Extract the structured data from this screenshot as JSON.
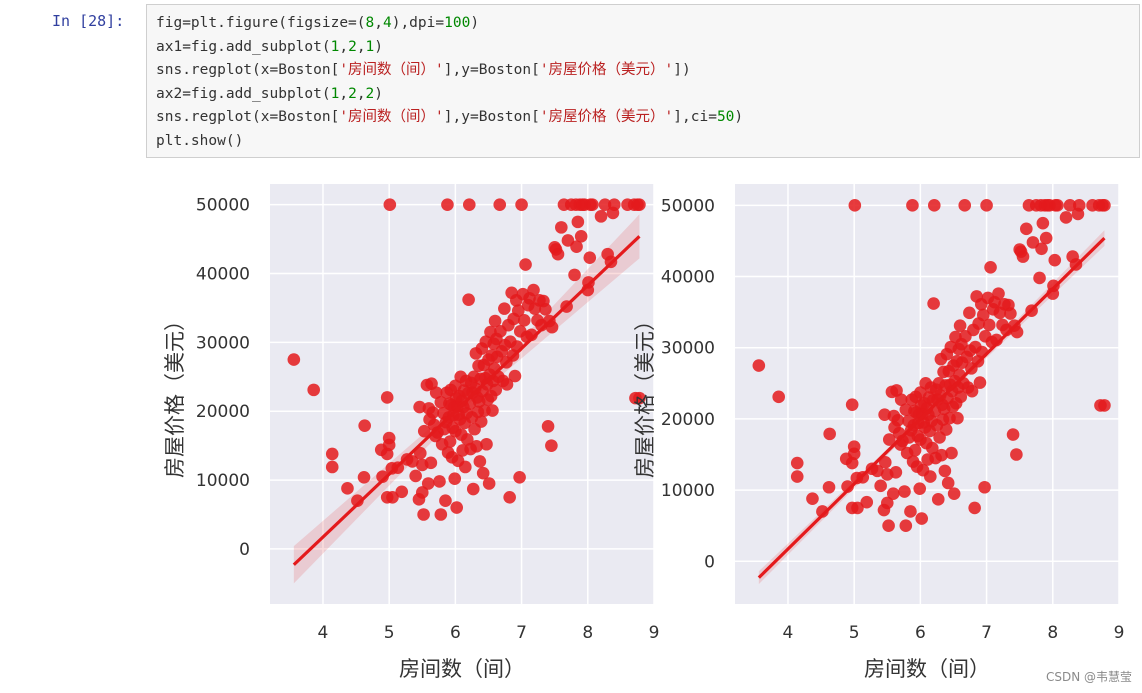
{
  "cell": {
    "prompt": "In  [28]:",
    "code_lines": [
      [
        {
          "t": "fig=plt.figure(figsize=(",
          "c": "kw"
        },
        {
          "t": "8",
          "c": "num"
        },
        {
          "t": ",",
          "c": "kw"
        },
        {
          "t": "4",
          "c": "num"
        },
        {
          "t": "),dpi=",
          "c": "kw"
        },
        {
          "t": "100",
          "c": "num"
        },
        {
          "t": ")",
          "c": "kw"
        }
      ],
      [
        {
          "t": "ax1=fig.add_subplot(",
          "c": "kw"
        },
        {
          "t": "1",
          "c": "num"
        },
        {
          "t": ",",
          "c": "kw"
        },
        {
          "t": "2",
          "c": "num"
        },
        {
          "t": ",",
          "c": "kw"
        },
        {
          "t": "1",
          "c": "num"
        },
        {
          "t": ")",
          "c": "kw"
        }
      ],
      [
        {
          "t": "sns.regplot(x=Boston[",
          "c": "kw"
        },
        {
          "t": "'房间数（间）'",
          "c": "str"
        },
        {
          "t": "],y=Boston[",
          "c": "kw"
        },
        {
          "t": "'房屋价格（美元）'",
          "c": "str"
        },
        {
          "t": "])",
          "c": "kw"
        }
      ],
      [
        {
          "t": "ax2=fig.add_subplot(",
          "c": "kw"
        },
        {
          "t": "1",
          "c": "num"
        },
        {
          "t": ",",
          "c": "kw"
        },
        {
          "t": "2",
          "c": "num"
        },
        {
          "t": ",",
          "c": "kw"
        },
        {
          "t": "2",
          "c": "num"
        },
        {
          "t": ")",
          "c": "kw"
        }
      ],
      [
        {
          "t": "sns.regplot(x=Boston[",
          "c": "kw"
        },
        {
          "t": "'房间数（间）'",
          "c": "str"
        },
        {
          "t": "],y=Boston[",
          "c": "kw"
        },
        {
          "t": "'房屋价格（美元）'",
          "c": "str"
        },
        {
          "t": "],ci=",
          "c": "kw"
        },
        {
          "t": "50",
          "c": "num"
        },
        {
          "t": ")",
          "c": "kw"
        }
      ],
      [
        {
          "t": "plt.show()",
          "c": "kw"
        }
      ]
    ]
  },
  "watermark": "CSDN @韦慧莹",
  "chart_data": [
    {
      "type": "scatter",
      "xlabel": "房间数（间）",
      "ylabel": "房屋价格（美元）",
      "xticks": [
        4,
        5,
        6,
        7,
        8,
        9
      ],
      "yticks": [
        0,
        10000,
        20000,
        30000,
        40000,
        50000
      ],
      "xlim": [
        3.2,
        9.0
      ],
      "ylim": [
        -8000,
        53000
      ],
      "grid": true,
      "point_color": "#e41a1c",
      "background_color": "#eaeaf2",
      "regression": {
        "x": [
          3.56,
          8.78
        ],
        "y": [
          -2300,
          45400
        ]
      },
      "ci_band": {
        "x": [
          3.56,
          6.28,
          8.78
        ],
        "lower": [
          -5000,
          21800,
          42200
        ],
        "upper": [
          400,
          23100,
          48600
        ]
      },
      "points": [
        [
          3.56,
          27500
        ],
        [
          3.86,
          23100
        ],
        [
          4.14,
          13800
        ],
        [
          4.14,
          11900
        ],
        [
          4.37,
          8800
        ],
        [
          4.52,
          7000
        ],
        [
          4.62,
          10400
        ],
        [
          4.63,
          17900
        ],
        [
          4.88,
          14400
        ],
        [
          4.9,
          10500
        ],
        [
          4.97,
          7500
        ],
        [
          4.97,
          22000
        ],
        [
          4.97,
          13800
        ],
        [
          5.0,
          16100
        ],
        [
          5.0,
          15100
        ],
        [
          5.01,
          50000
        ],
        [
          5.04,
          11700
        ],
        [
          5.05,
          7500
        ],
        [
          5.13,
          11800
        ],
        [
          5.19,
          8300
        ],
        [
          5.27,
          13000
        ],
        [
          5.35,
          12700
        ],
        [
          5.4,
          10600
        ],
        [
          5.45,
          7200
        ],
        [
          5.46,
          20600
        ],
        [
          5.47,
          13900
        ],
        [
          5.5,
          8200
        ],
        [
          5.5,
          12200
        ],
        [
          5.52,
          5000
        ],
        [
          5.53,
          17100
        ],
        [
          5.57,
          23800
        ],
        [
          5.59,
          9500
        ],
        [
          5.6,
          20400
        ],
        [
          5.61,
          18800
        ],
        [
          5.63,
          12500
        ],
        [
          5.64,
          24000
        ],
        [
          5.66,
          19800
        ],
        [
          5.68,
          18000
        ],
        [
          5.7,
          16400
        ],
        [
          5.71,
          22700
        ],
        [
          5.73,
          16900
        ],
        [
          5.76,
          9800
        ],
        [
          5.78,
          5000
        ],
        [
          5.78,
          21300
        ],
        [
          5.8,
          15200
        ],
        [
          5.82,
          19700
        ],
        [
          5.83,
          17400
        ],
        [
          5.85,
          7000
        ],
        [
          5.86,
          18400
        ],
        [
          5.87,
          22700
        ],
        [
          5.88,
          50000
        ],
        [
          5.89,
          14000
        ],
        [
          5.9,
          19100
        ],
        [
          5.91,
          21100
        ],
        [
          5.92,
          15600
        ],
        [
          5.93,
          23100
        ],
        [
          5.94,
          20900
        ],
        [
          5.95,
          13300
        ],
        [
          5.96,
          17600
        ],
        [
          5.97,
          19400
        ],
        [
          5.98,
          20600
        ],
        [
          5.99,
          10200
        ],
        [
          6.0,
          23700
        ],
        [
          6.0,
          17100
        ],
        [
          6.01,
          21900
        ],
        [
          6.02,
          6000
        ],
        [
          6.03,
          20700
        ],
        [
          6.04,
          12800
        ],
        [
          6.05,
          19500
        ],
        [
          6.06,
          22200
        ],
        [
          6.07,
          18800
        ],
        [
          6.08,
          25000
        ],
        [
          6.09,
          16600
        ],
        [
          6.1,
          21500
        ],
        [
          6.11,
          14300
        ],
        [
          6.12,
          20600
        ],
        [
          6.13,
          23000
        ],
        [
          6.14,
          18300
        ],
        [
          6.15,
          11900
        ],
        [
          6.16,
          24400
        ],
        [
          6.17,
          19700
        ],
        [
          6.18,
          15900
        ],
        [
          6.19,
          22600
        ],
        [
          6.2,
          36200
        ],
        [
          6.21,
          50000
        ],
        [
          6.22,
          21100
        ],
        [
          6.23,
          14500
        ],
        [
          6.24,
          24100
        ],
        [
          6.25,
          19100
        ],
        [
          6.26,
          22700
        ],
        [
          6.27,
          8700
        ],
        [
          6.28,
          25000
        ],
        [
          6.29,
          17400
        ],
        [
          6.3,
          23300
        ],
        [
          6.31,
          28400
        ],
        [
          6.32,
          14900
        ],
        [
          6.33,
          22000
        ],
        [
          6.34,
          19900
        ],
        [
          6.35,
          26600
        ],
        [
          6.36,
          21400
        ],
        [
          6.37,
          12700
        ],
        [
          6.38,
          24700
        ],
        [
          6.39,
          18500
        ],
        [
          6.4,
          29100
        ],
        [
          6.41,
          22900
        ],
        [
          6.42,
          11000
        ],
        [
          6.43,
          26700
        ],
        [
          6.44,
          20100
        ],
        [
          6.45,
          24800
        ],
        [
          6.46,
          30100
        ],
        [
          6.47,
          15200
        ],
        [
          6.48,
          23900
        ],
        [
          6.49,
          21700
        ],
        [
          6.5,
          27500
        ],
        [
          6.51,
          9500
        ],
        [
          6.52,
          25300
        ],
        [
          6.53,
          31500
        ],
        [
          6.54,
          22200
        ],
        [
          6.55,
          28100
        ],
        [
          6.56,
          20100
        ],
        [
          6.57,
          24400
        ],
        [
          6.58,
          29800
        ],
        [
          6.59,
          26200
        ],
        [
          6.6,
          33100
        ],
        [
          6.61,
          23100
        ],
        [
          6.62,
          30500
        ],
        [
          6.63,
          27900
        ],
        [
          6.65,
          25000
        ],
        [
          6.67,
          50000
        ],
        [
          6.68,
          31600
        ],
        [
          6.7,
          28700
        ],
        [
          6.72,
          24400
        ],
        [
          6.74,
          34900
        ],
        [
          6.75,
          29600
        ],
        [
          6.77,
          27100
        ],
        [
          6.78,
          23900
        ],
        [
          6.8,
          32500
        ],
        [
          6.82,
          7500
        ],
        [
          6.83,
          30100
        ],
        [
          6.85,
          37200
        ],
        [
          6.87,
          28100
        ],
        [
          6.88,
          33400
        ],
        [
          6.9,
          25100
        ],
        [
          6.92,
          36100
        ],
        [
          6.93,
          29400
        ],
        [
          6.95,
          34600
        ],
        [
          6.97,
          10400
        ],
        [
          6.98,
          31600
        ],
        [
          7.0,
          50000
        ],
        [
          7.02,
          37000
        ],
        [
          7.04,
          33200
        ],
        [
          7.06,
          41300
        ],
        [
          7.08,
          30800
        ],
        [
          7.1,
          35400
        ],
        [
          7.12,
          36400
        ],
        [
          7.15,
          31100
        ],
        [
          7.18,
          37600
        ],
        [
          7.2,
          34900
        ],
        [
          7.24,
          33200
        ],
        [
          7.27,
          36100
        ],
        [
          7.3,
          32500
        ],
        [
          7.33,
          36000
        ],
        [
          7.36,
          34800
        ],
        [
          7.4,
          17800
        ],
        [
          7.42,
          33100
        ],
        [
          7.45,
          15000
        ],
        [
          7.46,
          32200
        ],
        [
          7.5,
          43800
        ],
        [
          7.52,
          43500
        ],
        [
          7.55,
          42800
        ],
        [
          7.6,
          46700
        ],
        [
          7.64,
          50000
        ],
        [
          7.68,
          35200
        ],
        [
          7.7,
          44800
        ],
        [
          7.75,
          50000
        ],
        [
          7.8,
          39800
        ],
        [
          7.82,
          50000
        ],
        [
          7.83,
          43900
        ],
        [
          7.85,
          47500
        ],
        [
          7.88,
          50000
        ],
        [
          7.9,
          45400
        ],
        [
          7.92,
          50000
        ],
        [
          7.95,
          50000
        ],
        [
          8.0,
          37600
        ],
        [
          8.01,
          38700
        ],
        [
          8.03,
          42300
        ],
        [
          8.04,
          50000
        ],
        [
          8.07,
          50000
        ],
        [
          8.2,
          48300
        ],
        [
          8.26,
          50000
        ],
        [
          8.3,
          42800
        ],
        [
          8.35,
          41700
        ],
        [
          8.38,
          48800
        ],
        [
          8.4,
          50000
        ],
        [
          8.6,
          50000
        ],
        [
          8.7,
          50000
        ],
        [
          8.78,
          21900
        ],
        [
          8.78,
          50000
        ],
        [
          8.75,
          50000
        ],
        [
          8.72,
          21900
        ]
      ]
    },
    {
      "type": "scatter",
      "xlabel": "房间数（间）",
      "ylabel": "房屋价格（美元）",
      "xticks": [
        4,
        5,
        6,
        7,
        8,
        9
      ],
      "yticks": [
        0,
        10000,
        20000,
        30000,
        40000,
        50000
      ],
      "xlim": [
        3.2,
        9.0
      ],
      "ylim": [
        -6000,
        53000
      ],
      "grid": true,
      "point_color": "#e41a1c",
      "background_color": "#eaeaf2",
      "regression": {
        "x": [
          3.56,
          8.78
        ],
        "y": [
          -2300,
          45400
        ]
      },
      "ci_band": {
        "x": [
          3.56,
          6.28,
          8.78
        ],
        "lower": [
          -3200,
          22200,
          44300
        ],
        "upper": [
          -1400,
          22700,
          46500
        ]
      },
      "points": "same_as_left"
    }
  ]
}
